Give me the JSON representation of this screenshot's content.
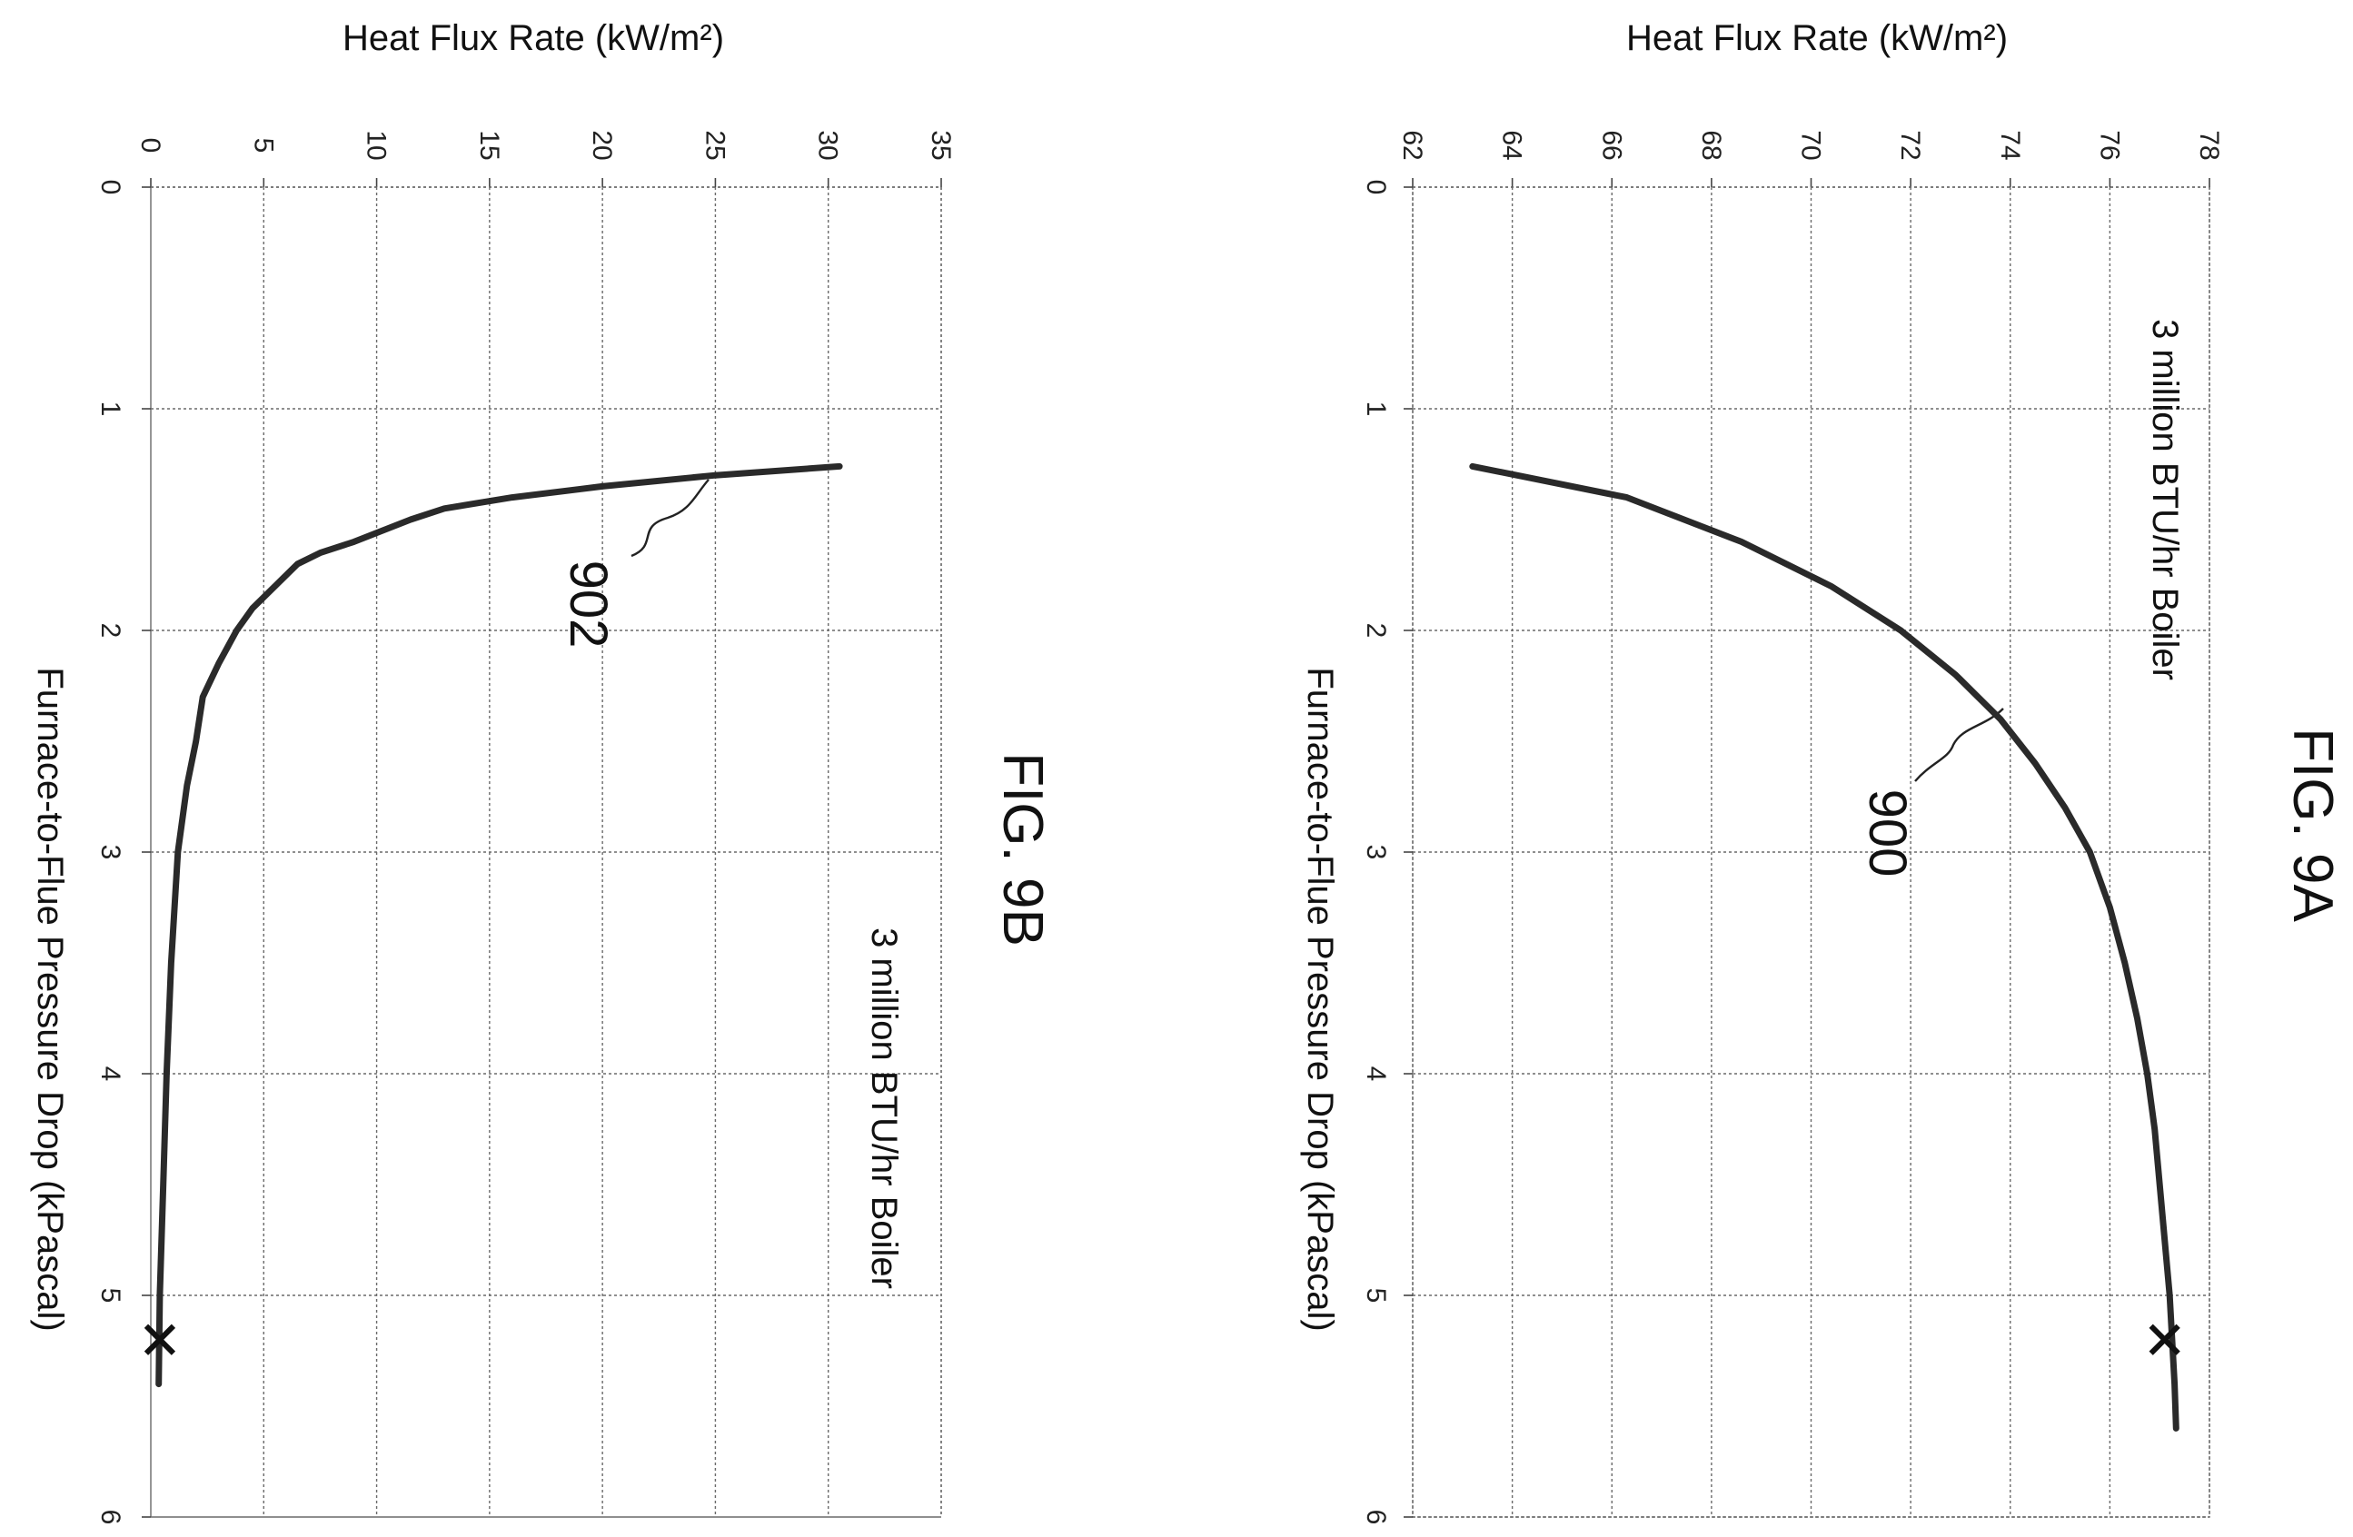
{
  "chart_data": [
    {
      "type": "line",
      "figure_label": "FIG. 9A",
      "annotation": "3 million BTU/hr Boiler",
      "reference_numeral": "900",
      "xlabel": "Furnace-to-Flue Pressure Drop (kPascal)",
      "ylabel": "Heat Flux Rate (kW/m²)",
      "xlim": [
        0,
        6
      ],
      "ylim": [
        62,
        78
      ],
      "x_ticks": [
        "0",
        "1",
        "2",
        "3",
        "4",
        "5",
        "6"
      ],
      "y_ticks": [
        "62",
        "64",
        "66",
        "68",
        "70",
        "72",
        "74",
        "76",
        "78"
      ],
      "grid": true,
      "orientation": "rotated 90° clockwise",
      "series": [
        {
          "x": [
            1.26,
            1.4,
            1.6,
            1.8,
            2.0,
            2.2,
            2.4,
            2.6,
            2.8,
            3.0,
            3.25,
            3.5,
            3.75,
            4.0,
            4.25,
            4.5,
            4.75,
            5.0,
            5.2,
            5.4,
            5.6
          ],
          "y": [
            63.2,
            66.3,
            68.6,
            70.4,
            71.8,
            72.9,
            73.8,
            74.5,
            75.1,
            75.6,
            76.0,
            76.3,
            76.55,
            76.75,
            76.9,
            77.0,
            77.1,
            77.2,
            77.25,
            77.3,
            77.33
          ]
        }
      ],
      "end_marker": {
        "x": 5.2,
        "y": 77.1,
        "symbol": "×"
      }
    },
    {
      "type": "line",
      "figure_label": "FIG. 9B",
      "annotation": "3 million BTU/hr Boiler",
      "reference_numeral": "902",
      "xlabel": "Furnace-to-Flue Pressure Drop (kPascal)",
      "ylabel": "Heat Flux Rate (kW/m²)",
      "xlim": [
        0,
        6
      ],
      "ylim": [
        0,
        35
      ],
      "x_ticks": [
        "0",
        "1",
        "2",
        "3",
        "4",
        "5",
        "6"
      ],
      "y_ticks": [
        "0",
        "5",
        "10",
        "15",
        "20",
        "25",
        "30",
        "35"
      ],
      "grid": true,
      "orientation": "rotated 90° clockwise",
      "series": [
        {
          "x": [
            1.26,
            1.3,
            1.35,
            1.4,
            1.45,
            1.5,
            1.6,
            1.65,
            1.7,
            1.8,
            1.9,
            2.0,
            2.15,
            2.3,
            2.5,
            2.7,
            3.0,
            3.5,
            4.0,
            4.5,
            5.0,
            5.4
          ],
          "y": [
            30.5,
            25.0,
            20.0,
            16.0,
            13.0,
            11.5,
            9.0,
            7.5,
            6.5,
            5.5,
            4.5,
            3.8,
            3.0,
            2.3,
            2.0,
            1.6,
            1.2,
            0.9,
            0.7,
            0.55,
            0.4,
            0.35
          ]
        }
      ],
      "end_marker": {
        "x": 5.2,
        "y": 0.4,
        "symbol": "×"
      }
    }
  ]
}
